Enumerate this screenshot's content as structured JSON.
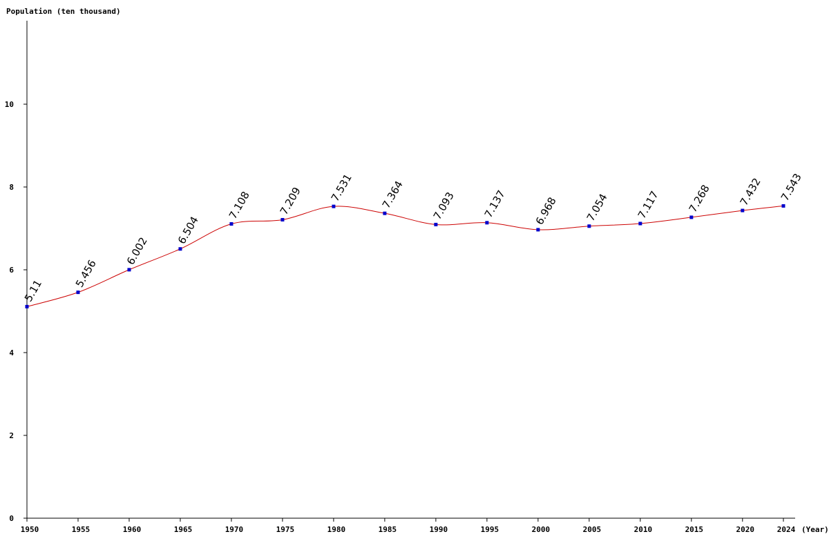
{
  "chart_data": {
    "type": "line",
    "title": "",
    "ylabel": "Population (ten thousand)",
    "xlabel": "(Year)",
    "x": [
      1950,
      1955,
      1960,
      1965,
      1970,
      1975,
      1980,
      1985,
      1990,
      1995,
      2000,
      2005,
      2010,
      2015,
      2020,
      2024
    ],
    "values": [
      5.11,
      5.456,
      6.002,
      6.504,
      7.108,
      7.209,
      7.531,
      7.364,
      7.093,
      7.137,
      6.968,
      7.054,
      7.117,
      7.268,
      7.432,
      7.543
    ],
    "value_labels": [
      "5.11",
      "5.456",
      "6.002",
      "6.504",
      "7.108",
      "7.209",
      "7.531",
      "7.364",
      "7.093",
      "7.137",
      "6.968",
      "7.054",
      "7.117",
      "7.268",
      "7.432",
      "7.543"
    ],
    "x_tick_labels": [
      "1950",
      "1955",
      "1960",
      "1965",
      "1970",
      "1975",
      "1980",
      "1985",
      "1990",
      "1995",
      "2000",
      "2005",
      "2010",
      "2015",
      "2020",
      "2024"
    ],
    "y_ticks": [
      0,
      2,
      4,
      6,
      8,
      10
    ],
    "y_tick_labels": [
      "0",
      "2",
      "4",
      "6",
      "8",
      "10"
    ],
    "ylim": [
      0,
      12
    ],
    "xlim": [
      1950,
      2024
    ],
    "grid": false,
    "legend": "none",
    "line_color": "#cc0000",
    "marker_color": "#0000cc"
  }
}
